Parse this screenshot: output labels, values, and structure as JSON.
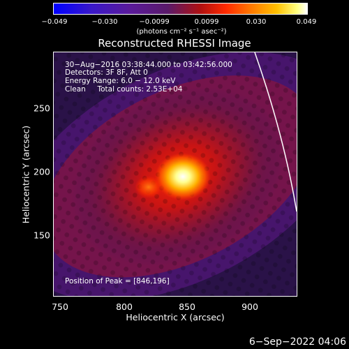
{
  "colorbar": {
    "ticks": [
      "−0.049",
      "−0.030",
      "−0.0099",
      "0.0099",
      "0.030",
      "0.049"
    ],
    "unit_label": "(photons cm⁻² s⁻¹ asec⁻²)"
  },
  "title": "Reconstructed RHESSI Image",
  "info": {
    "line1": "30−Aug−2016 03:38:44.000 to 03:42:56.000",
    "line2": "Detectors: 3F 8F, Att 0",
    "line3": "Energy Range: 6.0 − 12.0 keV",
    "line4": "Clean     Total counts: 2.53E+04",
    "peak": "Position of Peak = [846,196]"
  },
  "axes": {
    "xlabel": "Heliocentric X (arcsec)",
    "ylabel": "Heliocentric Y (arcsec)",
    "xticks": [
      "750",
      "800",
      "850",
      "900"
    ],
    "yticks": [
      "250",
      "200",
      "150"
    ]
  },
  "footer_date": "6−Sep−2022 04:06",
  "colors": {
    "background": "#000000",
    "frame": "#ffffff",
    "limb": "#ffffff"
  }
}
